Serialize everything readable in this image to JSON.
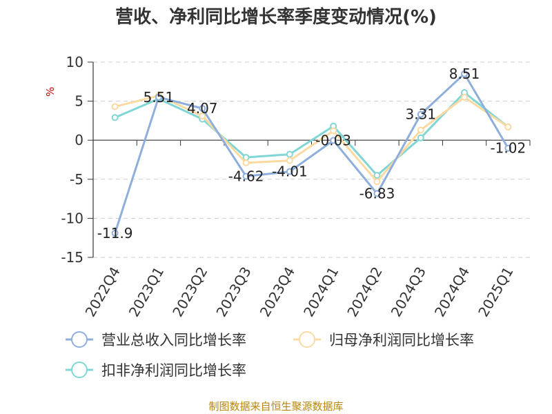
{
  "title": "营收、净利同比增长率季度变动情况(%)",
  "source": "制图数据来自恒生聚源数据库",
  "chart_data": {
    "type": "line",
    "title": "营收、净利同比增长率季度变动情况(%)",
    "ylabel": "%",
    "ylim": [
      -15,
      10
    ],
    "yticks": [
      10,
      5,
      0,
      -5,
      -10,
      -15
    ],
    "grid": true,
    "legend_position": "bottom",
    "categories": [
      "2022Q4",
      "2023Q1",
      "2023Q2",
      "2023Q3",
      "2023Q4",
      "2024Q1",
      "2024Q2",
      "2024Q3",
      "2024Q4",
      "2025Q1"
    ],
    "series": [
      {
        "name": "营业总收入同比增长率",
        "color": "#8eaedb",
        "values": [
          -11.9,
          5.51,
          4.07,
          -4.62,
          -4.01,
          -0.03,
          -6.83,
          3.31,
          8.51,
          -1.02
        ],
        "labels": [
          "-11.9",
          "5.51",
          "4.07",
          "-4.62",
          "-4.01",
          "-0.03",
          "-6.83",
          "3.31",
          "8.51",
          "-1.02"
        ]
      },
      {
        "name": "归母净利润同比增长率",
        "color": "#fcd9a1",
        "values": [
          4.3,
          5.7,
          3.1,
          -2.9,
          -2.6,
          1.2,
          -5.3,
          1.3,
          5.5,
          1.7
        ],
        "labels": []
      },
      {
        "name": "扣非净利润同比增长率",
        "color": "#7fd6d4",
        "values": [
          2.9,
          5.3,
          2.7,
          -2.2,
          -1.8,
          1.8,
          -4.5,
          0.3,
          6.1,
          1.7
        ],
        "labels": []
      }
    ]
  }
}
